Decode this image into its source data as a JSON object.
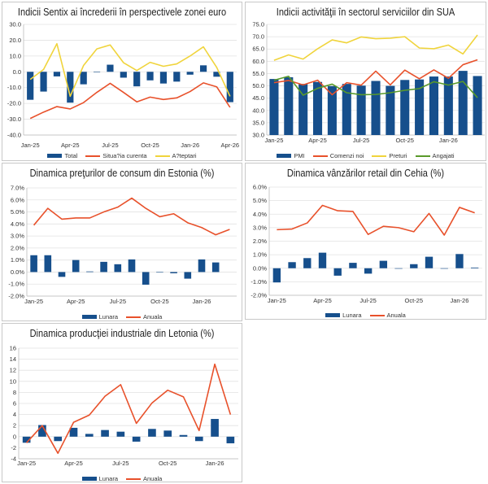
{
  "colors": {
    "bar": "#164f8c",
    "red": "#e8512b",
    "yellow": "#f0d43c",
    "green": "#5a9a2a",
    "grid": "#e2e2e2"
  },
  "chart_data": [
    {
      "type": "bar+line",
      "title": "Indicii Sentix ai încrederii în perspectivele zonei euro",
      "categories": [
        "Jan-25",
        "Feb-25",
        "Mar-25",
        "Apr-25",
        "May-25",
        "Jun-25",
        "Jul-25",
        "Aug-25",
        "Sep-25",
        "Oct-25",
        "Nov-25",
        "Dec-25",
        "Jan-26",
        "Feb-26",
        "Mar-26",
        "Apr-26"
      ],
      "xtick_labels": [
        "Jan-25",
        "Apr-25",
        "Jul-25",
        "Oct-25",
        "Jan-26",
        "Apr-26"
      ],
      "ylim": [
        -40,
        30
      ],
      "yticks": [
        30,
        20,
        10,
        0,
        -10,
        -20,
        -30,
        -40
      ],
      "ytick_labels": [
        "30.0",
        "20.0",
        "10.0",
        "0.0",
        "-10.0",
        "-20.0",
        "-30.0",
        "-40.0"
      ],
      "grid": true,
      "legend": "bottom",
      "series": [
        {
          "name": "Total",
          "kind": "bar",
          "color": "#164f8c",
          "values": [
            -17.7,
            -12.5,
            -2.9,
            -19.5,
            -7.9,
            -0.2,
            4.5,
            -3.7,
            -9.2,
            -5.4,
            -7.4,
            -6.2,
            -1.8,
            4.1,
            -3.1,
            -19.2
          ]
        },
        {
          "name": "Situa?ia curenta",
          "kind": "line",
          "color": "#e8512b",
          "values": [
            -29.5,
            -25.5,
            -22,
            -23.5,
            -19.5,
            -13,
            -7.3,
            -13,
            -19,
            -16,
            -17.5,
            -16.5,
            -12.5,
            -7,
            -9.5,
            -22.5
          ]
        },
        {
          "name": "A?teptari",
          "kind": "line",
          "color": "#f0d43c",
          "values": [
            -4.8,
            1.5,
            17.8,
            -15.5,
            4,
            14.5,
            17,
            5.8,
            0.8,
            6,
            3.5,
            5,
            10,
            15.8,
            2.8,
            -15.5
          ]
        }
      ]
    },
    {
      "type": "bar+line",
      "title": "Indicii activităţii în sectorul serviciilor din SUA",
      "categories": [
        "Jan-25",
        "Feb-25",
        "Mar-25",
        "Apr-25",
        "May-25",
        "Jun-25",
        "Jul-25",
        "Aug-25",
        "Sep-25",
        "Oct-25",
        "Nov-25",
        "Dec-25",
        "Jan-26",
        "Feb-26",
        "Mar-26"
      ],
      "xtick_labels": [
        "Jan-25",
        "Apr-25",
        "Jul-25",
        "Oct-25",
        "Jan-26"
      ],
      "ylim": [
        30,
        75
      ],
      "yticks": [
        75,
        70,
        65,
        60,
        55,
        50,
        45,
        40,
        35,
        30
      ],
      "ytick_labels": [
        "75.0",
        "70.0",
        "65.0",
        "60.0",
        "55.0",
        "50.0",
        "45.0",
        "40.0",
        "35.0",
        "30.0"
      ],
      "grid": true,
      "legend": "bottom",
      "series": [
        {
          "name": "PMI",
          "kind": "bar",
          "color": "#164f8c",
          "values": [
            52.8,
            53.5,
            50.8,
            51.6,
            49.9,
            50.8,
            50.1,
            52.0,
            50.0,
            52.4,
            52.6,
            53.8,
            53.8,
            56.1,
            54.0
          ]
        },
        {
          "name": "Comenzi noi",
          "kind": "line",
          "color": "#e8512b",
          "values": [
            51.3,
            52.2,
            50.4,
            52.3,
            46.4,
            51.3,
            50.3,
            56.0,
            50.4,
            56.4,
            52.9,
            56.5,
            53.1,
            58.6,
            60.6
          ]
        },
        {
          "name": "Preturi",
          "kind": "line",
          "color": "#f0d43c",
          "values": [
            60.4,
            62.6,
            60.9,
            65.1,
            68.7,
            67.5,
            69.9,
            69.2,
            69.4,
            70.0,
            65.4,
            65.1,
            66.6,
            63.0,
            70.7
          ]
        },
        {
          "name": "Angajati",
          "kind": "line",
          "color": "#5a9a2a",
          "values": [
            52.3,
            53.9,
            46.2,
            49.0,
            50.7,
            47.2,
            46.4,
            46.5,
            47.2,
            48.2,
            48.9,
            51.7,
            50.3,
            51.8,
            45.2
          ]
        }
      ]
    },
    {
      "type": "bar+line",
      "title": "Dinamica preţurilor de consum din Estonia (%)",
      "categories": [
        "Jan-25",
        "Feb-25",
        "Mar-25",
        "Apr-25",
        "May-25",
        "Jun-25",
        "Jul-25",
        "Aug-25",
        "Sep-25",
        "Oct-25",
        "Nov-25",
        "Dec-25",
        "Jan-26",
        "Feb-26",
        "Mar-26"
      ],
      "xtick_labels": [
        "Jan-25",
        "Apr-25",
        "Jul-25",
        "Oct-25",
        "Jan-26"
      ],
      "ylim": [
        -2,
        7
      ],
      "yticks": [
        7,
        6,
        5,
        4,
        3,
        2,
        1,
        0,
        -1,
        -2
      ],
      "ytick_labels": [
        "7.0%",
        "6.0%",
        "5.0%",
        "4.0%",
        "3.0%",
        "2.0%",
        "1.0%",
        "0.0%",
        "-1.0%",
        "-2.0%"
      ],
      "grid": true,
      "legend": "bottom",
      "series": [
        {
          "name": "Lunara",
          "kind": "bar",
          "color": "#164f8c",
          "values": [
            1.4,
            1.4,
            -0.4,
            1.0,
            0.05,
            0.85,
            0.65,
            1.05,
            -1.05,
            0,
            -0.1,
            -0.55,
            1.05,
            0.8,
            null
          ]
        },
        {
          "name": "Anuala",
          "kind": "line",
          "color": "#e8512b",
          "values": [
            3.9,
            5.3,
            4.4,
            4.5,
            4.5,
            5.0,
            5.4,
            6.15,
            5.3,
            4.6,
            4.85,
            4.1,
            3.7,
            3.1,
            3.55
          ]
        }
      ]
    },
    {
      "type": "bar+line",
      "title": "Dinamica vânzărilor retail din Cehia (%)",
      "categories": [
        "Jan-25",
        "Feb-25",
        "Mar-25",
        "Apr-25",
        "May-25",
        "Jun-25",
        "Jul-25",
        "Aug-25",
        "Sep-25",
        "Oct-25",
        "Nov-25",
        "Dec-25",
        "Jan-26",
        "Feb-26"
      ],
      "xtick_labels": [
        "Jan-25",
        "Apr-25",
        "Jul-25",
        "Oct-25",
        "Jan-26"
      ],
      "ylim": [
        -2,
        6
      ],
      "yticks": [
        6,
        5,
        4,
        3,
        2,
        1,
        0,
        -1,
        -2
      ],
      "ytick_labels": [
        "6.0%",
        "5.0%",
        "4.0%",
        "3.0%",
        "2.0%",
        "1.0%",
        "0.0%",
        "-1.0%",
        "-2.0%"
      ],
      "grid": true,
      "legend": "bottom",
      "series": [
        {
          "name": "Lunara",
          "kind": "bar",
          "color": "#164f8c",
          "values": [
            -1.05,
            0.45,
            0.75,
            1.15,
            -0.55,
            0.4,
            -0.4,
            0.55,
            -0.02,
            0.3,
            0.85,
            0,
            1.05,
            0.05
          ]
        },
        {
          "name": "Anuala",
          "kind": "line",
          "color": "#e8512b",
          "values": [
            2.85,
            2.9,
            3.35,
            4.65,
            4.25,
            4.2,
            2.5,
            3.1,
            3.0,
            2.7,
            4.05,
            2.45,
            4.5,
            4.1
          ]
        }
      ]
    },
    {
      "type": "bar+line",
      "title": "Dinamica producţiei industriale din Letonia (%)",
      "categories": [
        "Jan-25",
        "Feb-25",
        "Mar-25",
        "Apr-25",
        "May-25",
        "Jun-25",
        "Jul-25",
        "Aug-25",
        "Sep-25",
        "Oct-25",
        "Nov-25",
        "Dec-25",
        "Jan-26",
        "Feb-26"
      ],
      "xtick_labels": [
        "Jan-25",
        "Apr-25",
        "Jul-25",
        "Oct-25",
        "Jan-26"
      ],
      "ylim": [
        -4,
        16
      ],
      "yticks": [
        16,
        14,
        12,
        10,
        8,
        6,
        4,
        2,
        0,
        -2,
        -4
      ],
      "ytick_labels": [
        "16",
        "14",
        "12",
        "10",
        "8",
        "6",
        "4",
        "2",
        "0",
        "-2",
        "-4"
      ],
      "grid": true,
      "legend": "bottom",
      "series": [
        {
          "name": "Lunara",
          "kind": "bar",
          "color": "#164f8c",
          "values": [
            -1.1,
            2.1,
            -0.8,
            1.6,
            0.5,
            1.2,
            0.9,
            -0.9,
            1.4,
            1.1,
            0.3,
            -0.8,
            3.2,
            -1.2
          ]
        },
        {
          "name": "Anuala",
          "kind": "line",
          "color": "#e8512b",
          "values": [
            -1.1,
            2.0,
            -3.0,
            2.6,
            3.9,
            7.3,
            9.4,
            2.4,
            6.1,
            8.4,
            7.2,
            1.1,
            13.1,
            4.0
          ]
        }
      ]
    }
  ]
}
